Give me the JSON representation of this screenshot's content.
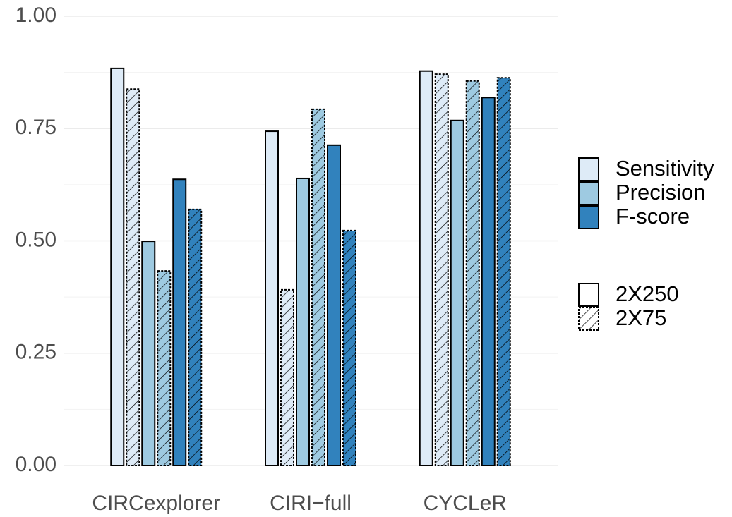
{
  "chart_data": {
    "type": "bar",
    "categories": [
      "CIRCexplorer",
      "CIRI−full",
      "CYCLeR"
    ],
    "patterns": [
      {
        "name": "2X250",
        "hatch": false
      },
      {
        "name": "2X75",
        "hatch": true
      }
    ],
    "series": [
      {
        "name": "Sensitivity",
        "color": "#deebf7",
        "values": [
          [
            0.884,
            0.838
          ],
          [
            0.744,
            0.391
          ],
          [
            0.878,
            0.871
          ]
        ]
      },
      {
        "name": "Precision",
        "color": "#9ecae1",
        "values": [
          [
            0.499,
            0.433
          ],
          [
            0.639,
            0.793
          ],
          [
            0.768,
            0.856
          ]
        ]
      },
      {
        "name": "F-score",
        "color": "#3182bd",
        "values": [
          [
            0.637,
            0.57
          ],
          [
            0.713,
            0.523
          ],
          [
            0.819,
            0.863
          ]
        ]
      }
    ],
    "ylim": [
      0,
      1
    ],
    "yticks": [
      {
        "value": 0,
        "label": "0.00"
      },
      {
        "value": 0.25,
        "label": "0.25"
      },
      {
        "value": 0.5,
        "label": "0.50"
      },
      {
        "value": 0.75,
        "label": "0.75"
      },
      {
        "value": 1,
        "label": "1.00"
      }
    ],
    "grid": true
  }
}
